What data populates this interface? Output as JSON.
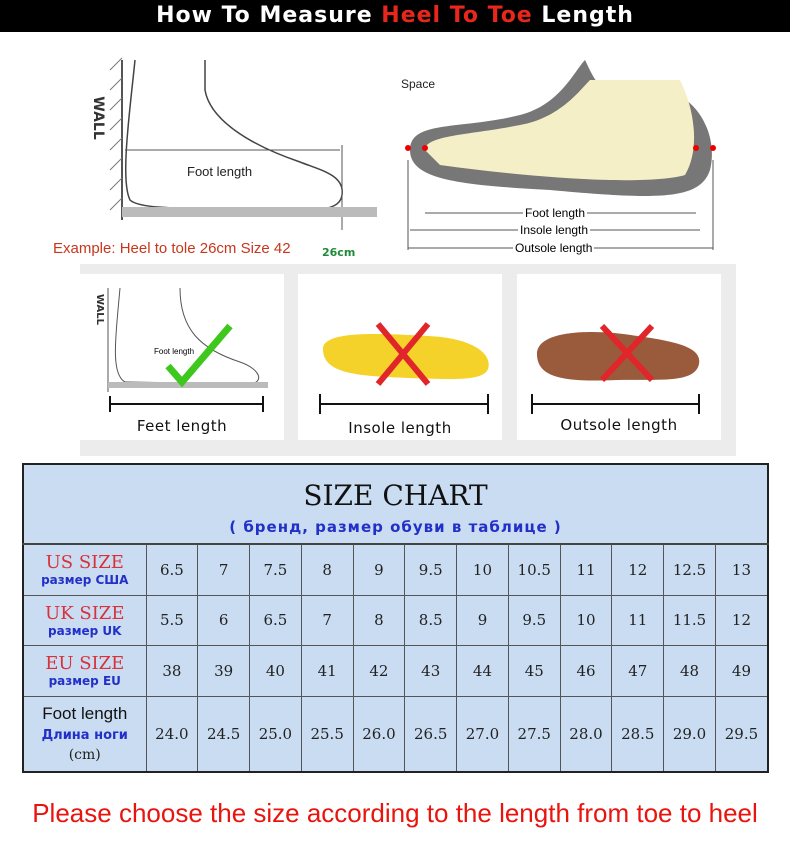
{
  "header": {
    "prefix": "How To Measure ",
    "highlight": "Heel To Toe",
    "suffix": " Length"
  },
  "diagram_left": {
    "wall": "WALL",
    "foot_length": "Foot length",
    "example": "Example: Heel to tole 26cm Size 42",
    "mark": "26cm"
  },
  "diagram_right": {
    "space": "Space",
    "foot_length": "Foot length",
    "insole_length": "Insole length",
    "outsole_length": "Outsole length"
  },
  "panels": [
    {
      "label": "Feet length",
      "wall": "WALL",
      "inner": "Foot length",
      "status": "correct"
    },
    {
      "label": "Insole length",
      "status": "wrong"
    },
    {
      "label": "Outsole length",
      "status": "wrong"
    }
  ],
  "colors": {
    "accent_red": "#e8261b",
    "correct_green": "#3ec71d",
    "wrong_red": "#e0262a",
    "table_bg": "#c9dcf1"
  },
  "size_chart": {
    "title": "SIZE CHART",
    "subtitle": "( бренд,  размер обуви в таблице )",
    "rows": [
      {
        "label": "US SIZE",
        "sub": "размер  США",
        "values": [
          "6.5",
          "7",
          "7.5",
          "8",
          "9",
          "9.5",
          "10",
          "10.5",
          "11",
          "12",
          "12.5",
          "13"
        ]
      },
      {
        "label": "UK SIZE",
        "sub": "размер  UK",
        "values": [
          "5.5",
          "6",
          "6.5",
          "7",
          "8",
          "8.5",
          "9",
          "9.5",
          "10",
          "11",
          "11.5",
          "12"
        ]
      },
      {
        "label": "EU SIZE",
        "sub": "размер  EU",
        "values": [
          "38",
          "39",
          "40",
          "41",
          "42",
          "43",
          "44",
          "45",
          "46",
          "47",
          "48",
          "49"
        ]
      },
      {
        "label": "Foot length",
        "sub": "Длина ноги",
        "unit": "(cm)",
        "values": [
          "24.0",
          "24.5",
          "25.0",
          "25.5",
          "26.0",
          "26.5",
          "27.0",
          "27.5",
          "28.0",
          "28.5",
          "29.0",
          "29.5"
        ]
      }
    ]
  },
  "footer": "Please choose the size according to the length from toe to heel"
}
